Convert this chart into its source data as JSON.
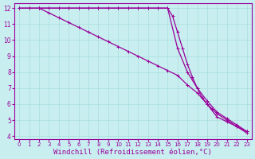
{
  "background_color": "#c8eef0",
  "grid_color": "#aadddd",
  "line_color": "#990099",
  "marker": "+",
  "markersize": 3,
  "linewidth": 0.9,
  "xlim": [
    -0.5,
    23.5
  ],
  "ylim": [
    3.8,
    12.3
  ],
  "xlabel": "Windchill (Refroidissement éolien,°C)",
  "xlabel_fontsize": 6.5,
  "xtick_fontsize": 5,
  "ytick_fontsize": 5.5,
  "line1_x": [
    0,
    1,
    2,
    3,
    4,
    5,
    6,
    7,
    8,
    9,
    10,
    11,
    12,
    13,
    14,
    15,
    15.5,
    16,
    16.5,
    17,
    17.5,
    18,
    18.5,
    19,
    19.5,
    20,
    21,
    22,
    23
  ],
  "line1_y": [
    12,
    12,
    12,
    12,
    12,
    12,
    12,
    12,
    12,
    12,
    12,
    12,
    12,
    12,
    12,
    12,
    11.5,
    10.5,
    9.5,
    8.5,
    7.7,
    7.0,
    6.4,
    6.0,
    5.7,
    5.4,
    5.0,
    4.6,
    4.3
  ],
  "line2_x": [
    0,
    1,
    2,
    3,
    4,
    5,
    6,
    7,
    8,
    9,
    10,
    11,
    12,
    13,
    14,
    15,
    16,
    17,
    18,
    19,
    20,
    21,
    22,
    23
  ],
  "line2_y": [
    12,
    12,
    12,
    12,
    12,
    12,
    12,
    12,
    12,
    12,
    12,
    12,
    12,
    12,
    12,
    12,
    9.5,
    8.0,
    7.0,
    6.2,
    5.5,
    5.1,
    4.7,
    4.3
  ],
  "line3_x": [
    2,
    3,
    4,
    5,
    6,
    7,
    8,
    9,
    10,
    11,
    12,
    13,
    14,
    15,
    16,
    17,
    18,
    19,
    20,
    21,
    22,
    23
  ],
  "line3_y": [
    12,
    11.7,
    11.4,
    11.1,
    10.8,
    10.5,
    10.2,
    9.9,
    9.6,
    9.3,
    9.0,
    8.7,
    8.4,
    8.1,
    7.8,
    7.2,
    6.7,
    6.0,
    5.2,
    4.9,
    4.6,
    4.2
  ]
}
